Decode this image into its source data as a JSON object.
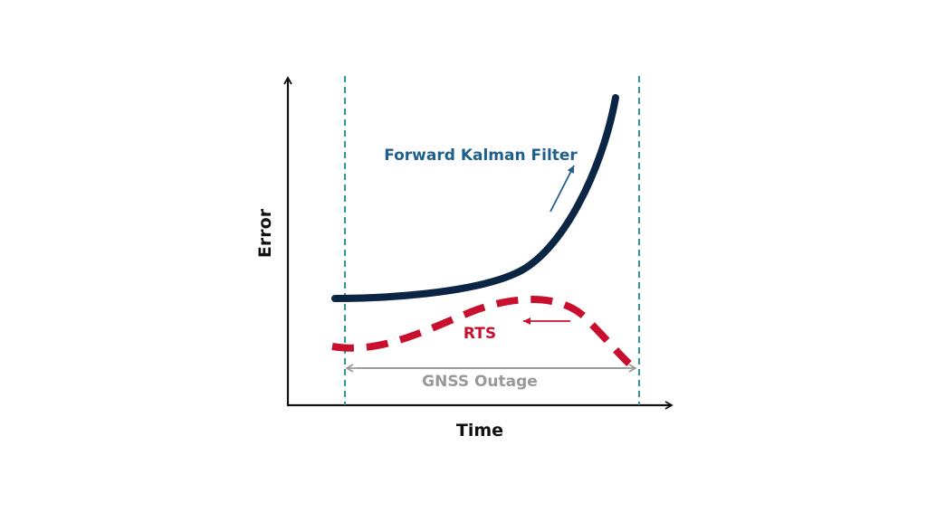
{
  "axes": {
    "x_label": "Time",
    "y_label": "Error"
  },
  "labels": {
    "forward": "Forward Kalman Filter",
    "rts": "RTS",
    "outage": "GNSS Outage"
  },
  "colors": {
    "axis": "#111111",
    "forward_curve": "#0b2545",
    "forward_label": "#1f5f8b",
    "rts_curve": "#c8102e",
    "boundary": "#1a8a8a",
    "outage": "#999999"
  }
}
